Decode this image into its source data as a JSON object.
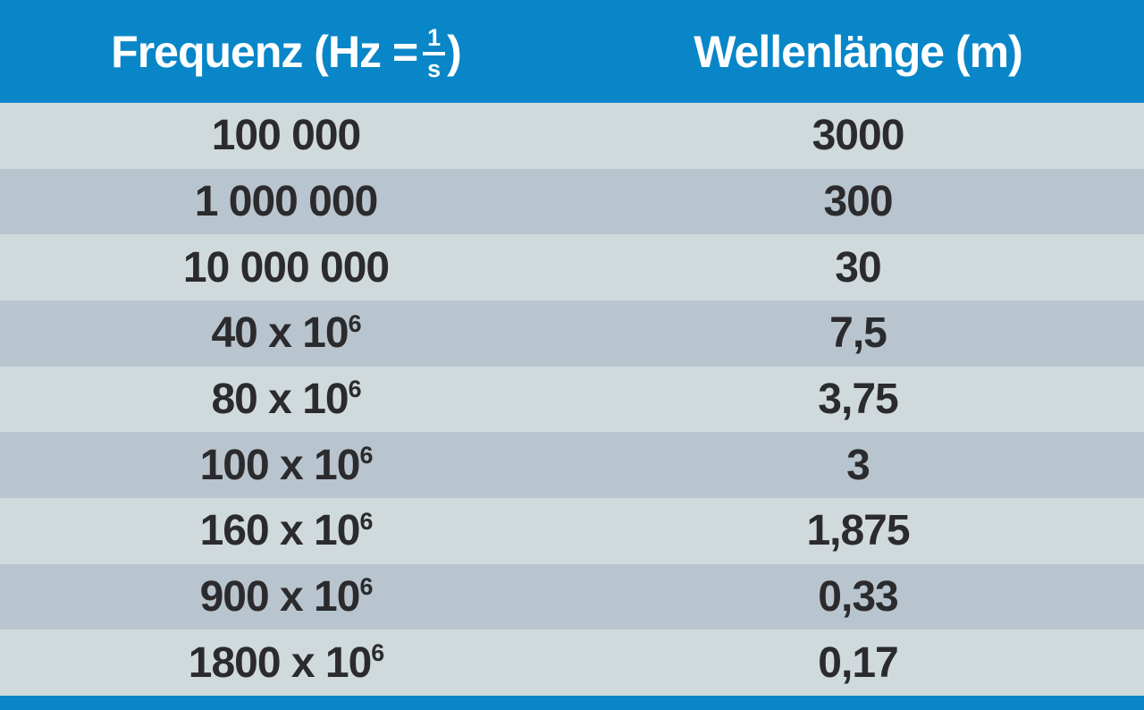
{
  "table": {
    "header": {
      "frequency_prefix": "Frequenz (Hz = ",
      "fraction_numerator": "1",
      "fraction_denominator": "s",
      "frequency_suffix": ")",
      "wavelength_label": "Wellenlänge (m)"
    },
    "rows": [
      {
        "frequency_base": "100 000",
        "frequency_exp": "",
        "wavelength": "3000"
      },
      {
        "frequency_base": "1 000 000",
        "frequency_exp": "",
        "wavelength": "300"
      },
      {
        "frequency_base": "10 000 000",
        "frequency_exp": "",
        "wavelength": "30"
      },
      {
        "frequency_base": "40 x 10",
        "frequency_exp": "6",
        "wavelength": "7,5"
      },
      {
        "frequency_base": "80 x 10",
        "frequency_exp": "6",
        "wavelength": "3,75"
      },
      {
        "frequency_base": "100 x 10",
        "frequency_exp": "6",
        "wavelength": "3"
      },
      {
        "frequency_base": "160 x 10",
        "frequency_exp": "6",
        "wavelength": "1,875"
      },
      {
        "frequency_base": "900 x 10",
        "frequency_exp": "6",
        "wavelength": "0,33"
      },
      {
        "frequency_base": "1800 x 10",
        "frequency_exp": "6",
        "wavelength": "0,17"
      }
    ]
  },
  "colors": {
    "header_blue": "#0886c8",
    "row_light": "#d0dadd",
    "row_dark": "#b8c5ce",
    "text_dark": "#2b2b2d",
    "header_text": "#ffffff"
  },
  "chart_data": {
    "type": "table",
    "title": "",
    "columns": [
      "Frequenz (Hz = 1/s)",
      "Wellenlänge (m)"
    ],
    "rows": [
      [
        "100 000",
        "3000"
      ],
      [
        "1 000 000",
        "300"
      ],
      [
        "10 000 000",
        "30"
      ],
      [
        "40 x 10^6",
        "7,5"
      ],
      [
        "80 x 10^6",
        "3,75"
      ],
      [
        "100 x 10^6",
        "3"
      ],
      [
        "160 x 10^6",
        "1,875"
      ],
      [
        "900 x 10^6",
        "0,33"
      ],
      [
        "1800 x 10^6",
        "0,17"
      ]
    ]
  }
}
